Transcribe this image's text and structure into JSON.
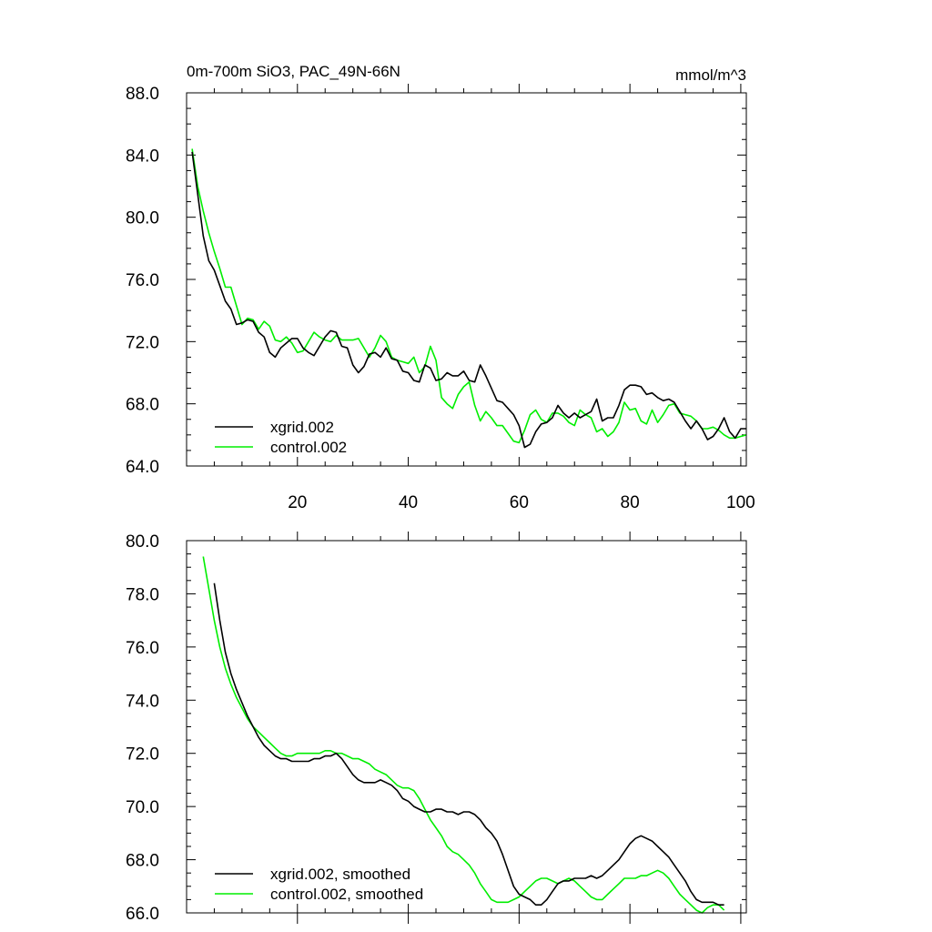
{
  "colors": {
    "series_xgrid": "#000000",
    "series_control": "#00ee00",
    "axes": "#000000",
    "background": "#ffffff"
  },
  "chart_data": [
    {
      "type": "line",
      "title": "0m-700m SiO3, PAC_49N-66N",
      "units": "mmol/m^3",
      "xlim": [
        0,
        101
      ],
      "ylim": [
        64,
        88
      ],
      "x_tick_labels": [
        "20",
        "40",
        "60",
        "80",
        "100"
      ],
      "y_tick_labels": [
        "64.0",
        "68.0",
        "72.0",
        "76.0",
        "80.0",
        "84.0",
        "88.0"
      ],
      "legend_position": "bottom-left",
      "series": [
        {
          "name": "xgrid.002",
          "color": "#000000",
          "x": [
            1,
            2,
            3,
            4,
            5,
            6,
            7,
            8,
            9,
            10,
            11,
            12,
            13,
            14,
            15,
            16,
            17,
            18,
            19,
            20,
            21,
            22,
            23,
            24,
            25,
            26,
            27,
            28,
            29,
            30,
            31,
            32,
            33,
            34,
            35,
            36,
            37,
            38,
            39,
            40,
            41,
            42,
            43,
            44,
            45,
            46,
            47,
            48,
            49,
            50,
            51,
            52,
            53,
            54,
            55,
            56,
            57,
            58,
            59,
            60,
            61,
            62,
            63,
            64,
            65,
            66,
            67,
            68,
            69,
            70,
            71,
            72,
            73,
            74,
            75,
            76,
            77,
            78,
            79,
            80,
            81,
            82,
            83,
            84,
            85,
            86,
            87,
            88,
            89,
            90,
            91,
            92,
            93,
            94,
            95,
            96,
            97,
            98,
            99,
            100,
            101
          ],
          "values": [
            84.2,
            81.5,
            78.8,
            77.2,
            76.6,
            75.6,
            74.6,
            74.1,
            73.1,
            73.2,
            73.4,
            73.3,
            72.6,
            72.3,
            71.3,
            71.0,
            71.6,
            71.9,
            72.2,
            72.2,
            71.6,
            71.3,
            71.1,
            71.7,
            72.3,
            72.7,
            72.6,
            71.7,
            71.6,
            70.5,
            70.0,
            70.4,
            71.2,
            71.3,
            71.0,
            71.6,
            70.9,
            70.8,
            70.1,
            70.0,
            69.5,
            69.4,
            70.5,
            70.3,
            69.5,
            69.6,
            70.0,
            69.8,
            69.8,
            70.1,
            69.5,
            69.4,
            70.5,
            69.8,
            69.0,
            68.2,
            68.1,
            67.7,
            67.3,
            66.6,
            65.2,
            65.4,
            66.2,
            66.7,
            66.8,
            67.1,
            67.9,
            67.4,
            67.1,
            67.4,
            67.1,
            67.3,
            67.5,
            68.3,
            66.9,
            67.1,
            67.1,
            67.9,
            68.9,
            69.2,
            69.2,
            69.1,
            68.6,
            68.7,
            68.4,
            68.2,
            68.3,
            68.1,
            67.5,
            66.9,
            66.4,
            66.9,
            66.4,
            65.7,
            65.9,
            66.4,
            67.1,
            66.2,
            65.8,
            66.4,
            66.4
          ]
        },
        {
          "name": "control.002",
          "color": "#00ee00",
          "x": [
            1,
            2,
            3,
            4,
            5,
            6,
            7,
            8,
            9,
            10,
            11,
            12,
            13,
            14,
            15,
            16,
            17,
            18,
            19,
            20,
            21,
            22,
            23,
            24,
            25,
            26,
            27,
            28,
            29,
            30,
            31,
            32,
            33,
            34,
            35,
            36,
            37,
            38,
            39,
            40,
            41,
            42,
            43,
            44,
            45,
            46,
            47,
            48,
            49,
            50,
            51,
            52,
            53,
            54,
            55,
            56,
            57,
            58,
            59,
            60,
            61,
            62,
            63,
            64,
            65,
            66,
            67,
            68,
            69,
            70,
            71,
            72,
            73,
            74,
            75,
            76,
            77,
            78,
            79,
            80,
            81,
            82,
            83,
            84,
            85,
            86,
            87,
            88,
            89,
            90,
            91,
            92,
            93,
            94,
            95,
            96,
            97,
            98,
            99,
            100,
            101
          ],
          "values": [
            84.4,
            82.0,
            80.4,
            79.0,
            77.8,
            76.7,
            75.5,
            75.5,
            74.3,
            73.1,
            73.5,
            73.4,
            72.8,
            73.3,
            73.0,
            72.1,
            72.0,
            72.3,
            71.9,
            71.3,
            71.4,
            72.0,
            72.6,
            72.3,
            72.1,
            72.0,
            72.4,
            72.1,
            72.1,
            72.1,
            72.2,
            71.6,
            71.0,
            71.6,
            72.4,
            72.0,
            71.0,
            70.8,
            70.7,
            70.6,
            71.0,
            70.0,
            70.4,
            71.7,
            70.8,
            68.4,
            68.0,
            67.7,
            68.6,
            69.1,
            69.4,
            67.9,
            66.9,
            67.5,
            67.1,
            66.6,
            66.6,
            66.1,
            65.6,
            65.5,
            66.3,
            67.3,
            67.6,
            67.0,
            66.8,
            67.4,
            67.4,
            67.2,
            66.8,
            66.6,
            67.6,
            67.3,
            67.1,
            66.2,
            66.4,
            65.9,
            66.2,
            66.8,
            68.1,
            67.6,
            67.7,
            66.9,
            66.7,
            67.6,
            66.8,
            67.3,
            67.9,
            68.0,
            67.4,
            67.3,
            67.2,
            66.9,
            66.4,
            66.4,
            66.5,
            66.3,
            66.0,
            65.8,
            65.8,
            65.9,
            66.0
          ]
        }
      ]
    },
    {
      "type": "line",
      "title": "",
      "xlim": [
        0,
        101
      ],
      "ylim": [
        66,
        80
      ],
      "x_tick_labels": [],
      "y_tick_labels": [
        "66.0",
        "68.0",
        "70.0",
        "72.0",
        "74.0",
        "76.0",
        "78.0",
        "80.0"
      ],
      "legend_position": "bottom-left",
      "series": [
        {
          "name": "xgrid.002, smoothed",
          "color": "#000000",
          "x": [
            5,
            6,
            7,
            8,
            9,
            10,
            11,
            12,
            13,
            14,
            15,
            16,
            17,
            18,
            19,
            20,
            21,
            22,
            23,
            24,
            25,
            26,
            27,
            28,
            29,
            30,
            31,
            32,
            33,
            34,
            35,
            36,
            37,
            38,
            39,
            40,
            41,
            42,
            43,
            44,
            45,
            46,
            47,
            48,
            49,
            50,
            51,
            52,
            53,
            54,
            55,
            56,
            57,
            58,
            59,
            60,
            61,
            62,
            63,
            64,
            65,
            66,
            67,
            68,
            69,
            70,
            71,
            72,
            73,
            74,
            75,
            76,
            77,
            78,
            79,
            80,
            81,
            82,
            83,
            84,
            85,
            86,
            87,
            88,
            89,
            90,
            91,
            92,
            93,
            94,
            95,
            96,
            97
          ],
          "values": [
            78.4,
            77.0,
            75.8,
            75.0,
            74.4,
            73.9,
            73.4,
            73.0,
            72.6,
            72.3,
            72.1,
            71.9,
            71.8,
            71.8,
            71.7,
            71.7,
            71.7,
            71.7,
            71.8,
            71.8,
            71.9,
            71.9,
            72.0,
            71.8,
            71.5,
            71.2,
            71.0,
            70.9,
            70.9,
            70.9,
            71.0,
            70.9,
            70.8,
            70.6,
            70.3,
            70.2,
            70.0,
            69.9,
            69.8,
            69.8,
            69.9,
            69.9,
            69.8,
            69.8,
            69.7,
            69.8,
            69.8,
            69.7,
            69.5,
            69.2,
            69.0,
            68.7,
            68.2,
            67.6,
            67.0,
            66.7,
            66.6,
            66.5,
            66.3,
            66.3,
            66.5,
            66.8,
            67.1,
            67.2,
            67.2,
            67.3,
            67.3,
            67.3,
            67.4,
            67.3,
            67.4,
            67.6,
            67.8,
            68.0,
            68.3,
            68.6,
            68.8,
            68.9,
            68.8,
            68.7,
            68.5,
            68.3,
            68.1,
            67.8,
            67.5,
            67.2,
            66.8,
            66.5,
            66.4,
            66.4,
            66.4,
            66.3,
            66.3
          ]
        },
        {
          "name": "control.002, smoothed",
          "color": "#00ee00",
          "x": [
            3,
            4,
            5,
            6,
            7,
            8,
            9,
            10,
            11,
            12,
            13,
            14,
            15,
            16,
            17,
            18,
            19,
            20,
            21,
            22,
            23,
            24,
            25,
            26,
            27,
            28,
            29,
            30,
            31,
            32,
            33,
            34,
            35,
            36,
            37,
            38,
            39,
            40,
            41,
            42,
            43,
            44,
            45,
            46,
            47,
            48,
            49,
            50,
            51,
            52,
            53,
            54,
            55,
            56,
            57,
            58,
            59,
            60,
            61,
            62,
            63,
            64,
            65,
            66,
            67,
            68,
            69,
            70,
            71,
            72,
            73,
            74,
            75,
            76,
            77,
            78,
            79,
            80,
            81,
            82,
            83,
            84,
            85,
            86,
            87,
            88,
            89,
            90,
            91,
            92,
            93,
            94,
            95,
            96,
            97
          ],
          "values": [
            79.4,
            78.2,
            77.0,
            76.0,
            75.2,
            74.6,
            74.1,
            73.7,
            73.3,
            73.0,
            72.8,
            72.6,
            72.4,
            72.2,
            72.0,
            71.9,
            71.9,
            72.0,
            72.0,
            72.0,
            72.0,
            72.0,
            72.1,
            72.1,
            72.0,
            72.0,
            71.9,
            71.8,
            71.8,
            71.7,
            71.6,
            71.4,
            71.3,
            71.2,
            71.0,
            70.8,
            70.7,
            70.7,
            70.6,
            70.3,
            69.9,
            69.5,
            69.2,
            68.9,
            68.5,
            68.3,
            68.2,
            68.0,
            67.8,
            67.5,
            67.1,
            66.8,
            66.5,
            66.4,
            66.4,
            66.4,
            66.5,
            66.6,
            66.8,
            67.0,
            67.2,
            67.3,
            67.3,
            67.2,
            67.1,
            67.2,
            67.3,
            67.2,
            67.0,
            66.8,
            66.6,
            66.5,
            66.5,
            66.7,
            66.9,
            67.1,
            67.3,
            67.3,
            67.3,
            67.4,
            67.4,
            67.5,
            67.6,
            67.5,
            67.3,
            67.0,
            66.7,
            66.5,
            66.3,
            66.1,
            66.0,
            66.2,
            66.3,
            66.3,
            66.1
          ]
        }
      ]
    }
  ]
}
